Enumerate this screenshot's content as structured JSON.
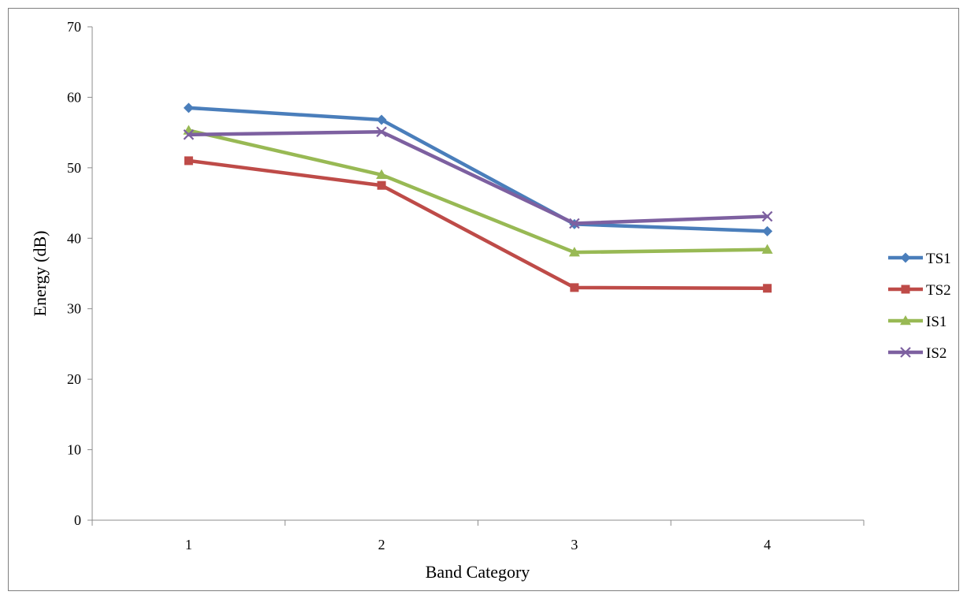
{
  "chart_data": {
    "type": "line",
    "title": "",
    "xlabel": "Band Category",
    "ylabel": "Energy (dB)",
    "categories": [
      "1",
      "2",
      "3",
      "4"
    ],
    "ylim": [
      0,
      70
    ],
    "yticks": [
      "0",
      "10",
      "20",
      "30",
      "40",
      "50",
      "60",
      "70"
    ],
    "grid": false,
    "legend_position": "right",
    "series": [
      {
        "name": "TS1",
        "values": [
          58.5,
          56.8,
          42.0,
          41.0
        ],
        "color": "#4a7ebb",
        "marker": "diamond"
      },
      {
        "name": "TS2",
        "values": [
          51.0,
          47.5,
          33.0,
          32.9
        ],
        "color": "#be4b48",
        "marker": "square"
      },
      {
        "name": "IS1",
        "values": [
          55.3,
          49.0,
          38.0,
          38.4
        ],
        "color": "#98b954",
        "marker": "triangle"
      },
      {
        "name": "IS2",
        "values": [
          54.7,
          55.1,
          42.1,
          43.1
        ],
        "color": "#7d60a0",
        "marker": "x"
      }
    ]
  }
}
